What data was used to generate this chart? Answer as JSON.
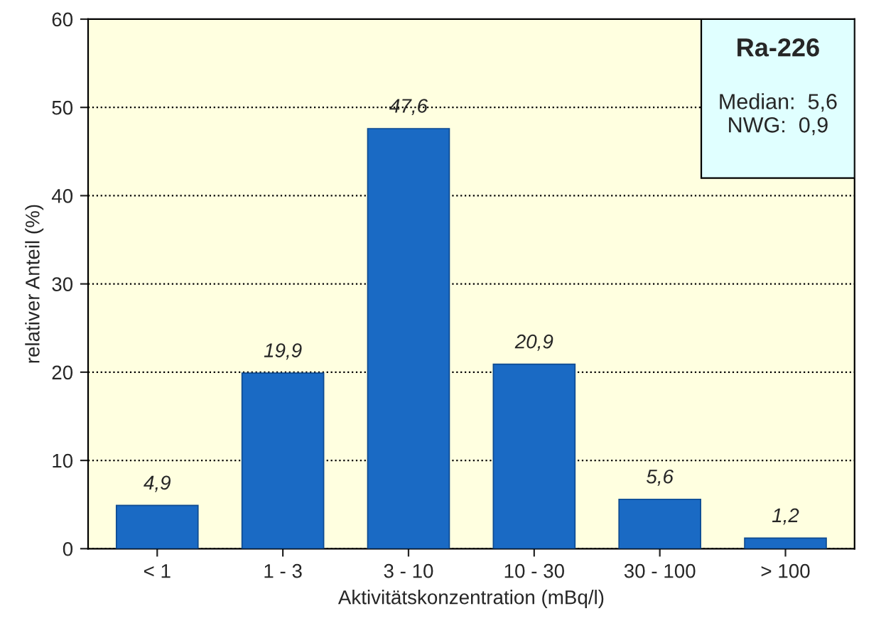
{
  "chart_data": {
    "type": "bar",
    "categories": [
      "< 1",
      "1 - 3",
      "3 - 10",
      "10 - 30",
      "30 - 100",
      "> 100"
    ],
    "values": [
      4.9,
      19.9,
      47.6,
      20.9,
      5.6,
      1.2
    ],
    "value_labels": [
      "4,9",
      "19,9",
      "47,6",
      "20,9",
      "5,6",
      "1,2"
    ],
    "color": "#1a6ac4",
    "xlabel": "Aktivitätskonzentration (mBq/l)",
    "ylabel": "relativer Anteil (%)",
    "ylim": [
      0,
      60
    ],
    "yticks": [
      0,
      10,
      20,
      30,
      40,
      50,
      60
    ],
    "grid": "y",
    "annotations": [
      "Ra-226",
      "Median:  5,6",
      "NWG:  0,9"
    ]
  }
}
